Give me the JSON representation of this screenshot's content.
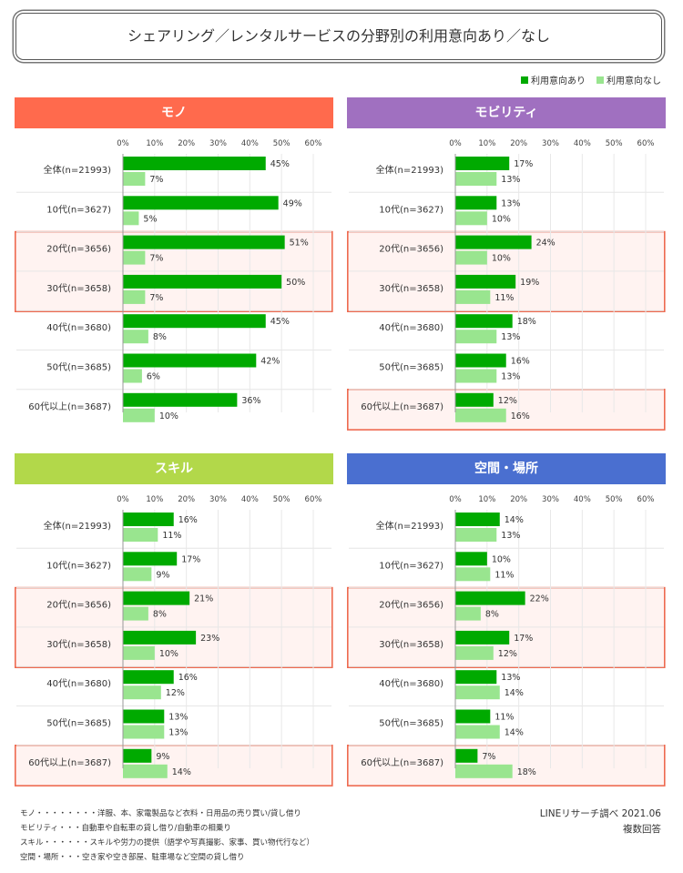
{
  "title": "シェアリング／レンタルサービスの分野別の利用意向あり／なし",
  "legend": [
    {
      "label": "利用意向あり",
      "color": "#00aa00"
    },
    {
      "label": "利用意向なし",
      "color": "#99e58f"
    }
  ],
  "source": "LINEリサーチ調べ 2021.06",
  "note_multi": "複数回答",
  "notes": [
    "モノ・・・・・・・・洋服、本、家電製品など衣料・日用品の売り買い/貸し借り",
    "モビリティ・・・自動車や自転車の貸し借り/自動車の相乗り",
    "スキル・・・・・・スキルや労力の提供（語学や写真撮影、家事、買い物代行など）",
    "空間・場所・・・空き家や空き部屋、駐車場など空間の貸し借り"
  ],
  "chart_data": [
    {
      "type": "bar",
      "title": "モノ",
      "header_color": "#ff6a4d",
      "categories": [
        "全体(n=21993)",
        "10代(n=3627)",
        "20代(n=3656)",
        "30代(n=3658)",
        "40代(n=3680)",
        "50代(n=3685)",
        "60代以上(n=3687)"
      ],
      "ticks": [
        "0%",
        "10%",
        "20%",
        "30%",
        "40%",
        "50%",
        "60%"
      ],
      "xlim": [
        0,
        60
      ],
      "series": [
        {
          "name": "利用意向あり",
          "values": [
            45,
            49,
            51,
            50,
            45,
            42,
            36
          ]
        },
        {
          "name": "利用意向なし",
          "values": [
            7,
            5,
            7,
            7,
            8,
            6,
            10
          ]
        }
      ],
      "highlight_groups": [
        [
          2,
          3
        ]
      ]
    },
    {
      "type": "bar",
      "title": "モビリティ",
      "header_color": "#a070c0",
      "categories": [
        "全体(n=21993)",
        "10代(n=3627)",
        "20代(n=3656)",
        "30代(n=3658)",
        "40代(n=3680)",
        "50代(n=3685)",
        "60代以上(n=3687)"
      ],
      "ticks": [
        "0%",
        "10%",
        "20%",
        "30%",
        "40%",
        "50%",
        "60%"
      ],
      "xlim": [
        0,
        60
      ],
      "series": [
        {
          "name": "利用意向あり",
          "values": [
            17,
            13,
            24,
            19,
            18,
            16,
            12
          ]
        },
        {
          "name": "利用意向なし",
          "values": [
            13,
            10,
            10,
            11,
            13,
            13,
            16
          ]
        }
      ],
      "highlight_groups": [
        [
          2,
          3
        ],
        [
          6,
          6
        ]
      ]
    },
    {
      "type": "bar",
      "title": "スキル",
      "header_color": "#b2d84a",
      "categories": [
        "全体(n=21993)",
        "10代(n=3627)",
        "20代(n=3656)",
        "30代(n=3658)",
        "40代(n=3680)",
        "50代(n=3685)",
        "60代以上(n=3687)"
      ],
      "ticks": [
        "0%",
        "10%",
        "20%",
        "30%",
        "40%",
        "50%",
        "60%"
      ],
      "xlim": [
        0,
        60
      ],
      "series": [
        {
          "name": "利用意向あり",
          "values": [
            16,
            17,
            21,
            23,
            16,
            13,
            9
          ]
        },
        {
          "name": "利用意向なし",
          "values": [
            11,
            9,
            8,
            10,
            12,
            13,
            14
          ]
        }
      ],
      "highlight_groups": [
        [
          2,
          3
        ],
        [
          6,
          6
        ]
      ]
    },
    {
      "type": "bar",
      "title": "空間・場所",
      "header_color": "#4a6fd0",
      "categories": [
        "全体(n=21993)",
        "10代(n=3627)",
        "20代(n=3656)",
        "30代(n=3658)",
        "40代(n=3680)",
        "50代(n=3685)",
        "60代以上(n=3687)"
      ],
      "ticks": [
        "0%",
        "10%",
        "20%",
        "30%",
        "40%",
        "50%",
        "60%"
      ],
      "xlim": [
        0,
        60
      ],
      "series": [
        {
          "name": "利用意向あり",
          "values": [
            14,
            10,
            22,
            17,
            13,
            11,
            7
          ]
        },
        {
          "name": "利用意向なし",
          "values": [
            13,
            11,
            8,
            12,
            14,
            14,
            18
          ]
        }
      ],
      "highlight_groups": [
        [
          2,
          3
        ],
        [
          6,
          6
        ]
      ]
    }
  ]
}
